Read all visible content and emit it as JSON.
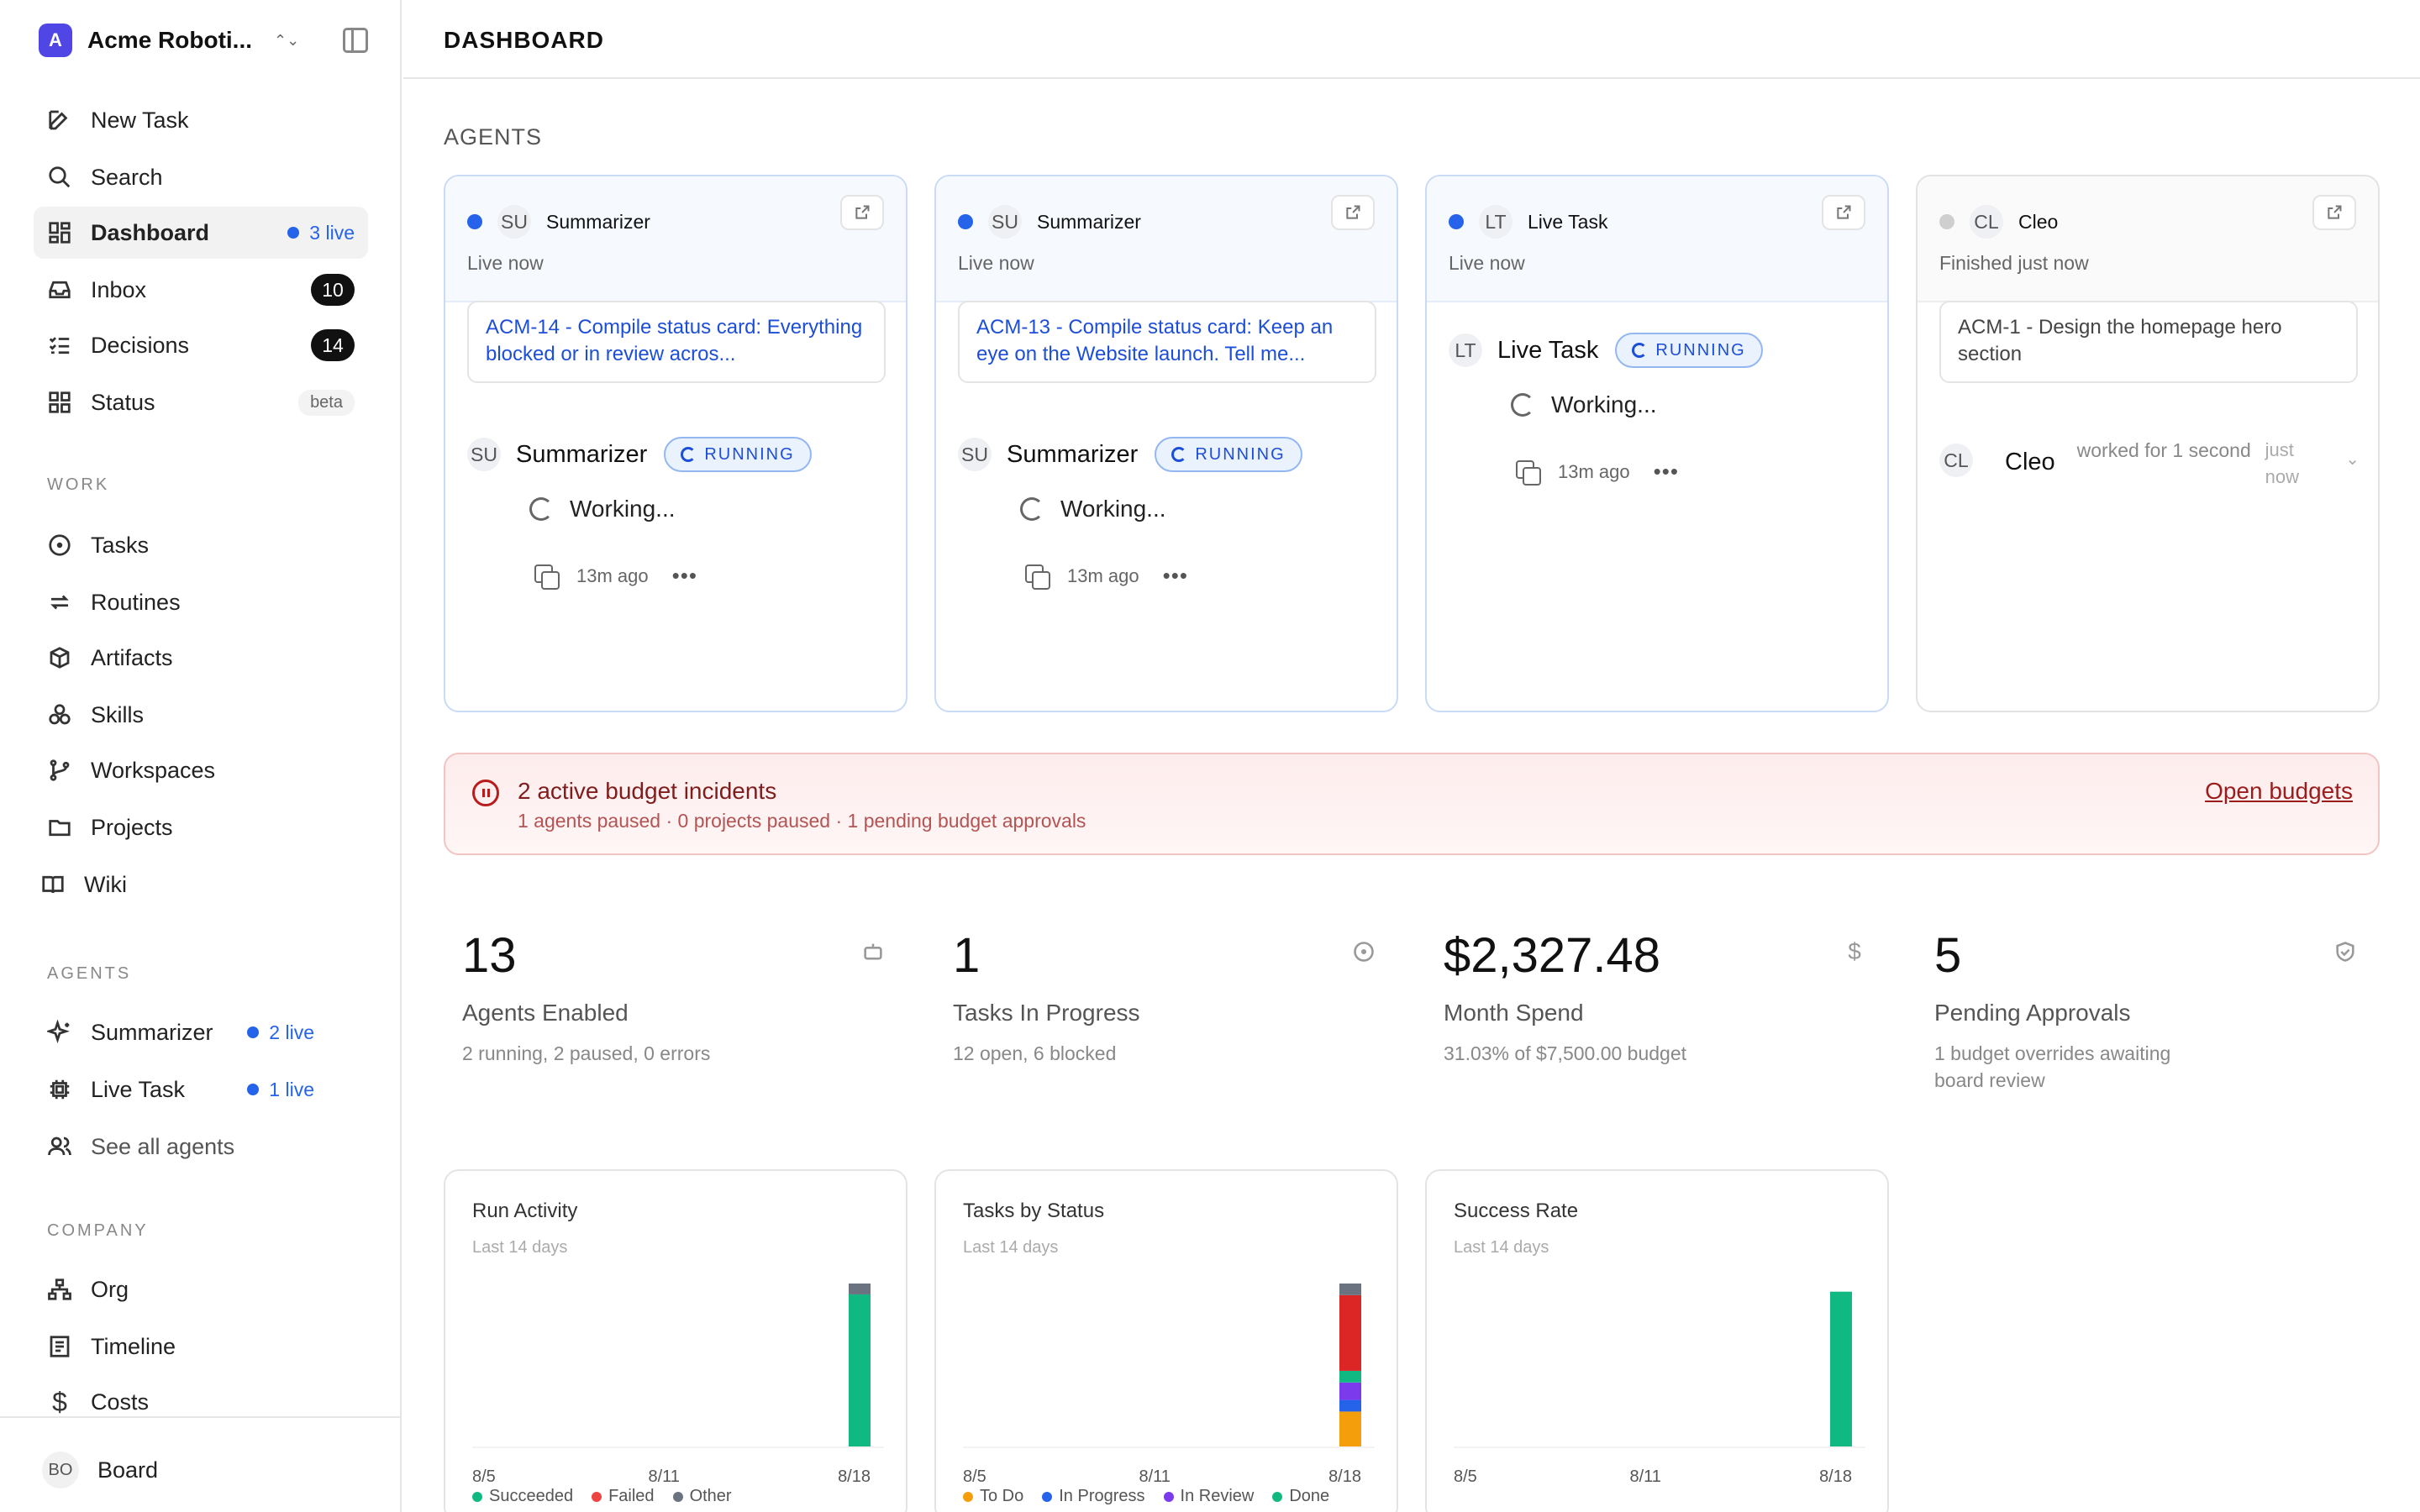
{
  "workspace": {
    "initial": "A",
    "name": "Acme Roboti...",
    "collapse_icon": "sidebar-collapse-icon"
  },
  "nav": {
    "new_task": "New Task",
    "search": "Search",
    "dashboard": "Dashboard",
    "dashboard_live": "3 live",
    "inbox": "Inbox",
    "inbox_count": "10",
    "decisions": "Decisions",
    "decisions_count": "14",
    "status": "Status",
    "status_badge": "beta"
  },
  "work_section": {
    "label": "WORK",
    "items": [
      "Tasks",
      "Routines",
      "Artifacts",
      "Skills",
      "Workspaces",
      "Projects",
      "Wiki"
    ]
  },
  "agents_section": {
    "label": "AGENTS",
    "summarizer": "Summarizer",
    "summarizer_live": "2 live",
    "live_task": "Live Task",
    "live_task_live": "1 live",
    "see_all": "See all agents"
  },
  "company_section": {
    "label": "COMPANY",
    "items": [
      "Org",
      "Timeline",
      "Costs"
    ]
  },
  "footer": {
    "initials": "BO",
    "name": "Board"
  },
  "header": {
    "title": "DASHBOARD"
  },
  "agents_heading": "AGENTS",
  "agent_cards": [
    {
      "initials": "SU",
      "name": "Summarizer",
      "sub": "Live now",
      "task": "ACM-14 - Compile status card: Everything blocked or in review acros...",
      "run_initials": "SU",
      "run_name": "Summarizer",
      "run_status": "RUNNING",
      "working": "Working...",
      "time": "13m ago"
    },
    {
      "initials": "SU",
      "name": "Summarizer",
      "sub": "Live now",
      "task": "ACM-13 - Compile status card: Keep an eye on the Website launch. Tell me...",
      "run_initials": "SU",
      "run_name": "Summarizer",
      "run_status": "RUNNING",
      "working": "Working...",
      "time": "13m ago"
    },
    {
      "initials": "LT",
      "name": "Live Task",
      "sub": "Live now",
      "run_initials": "LT",
      "run_name": "Live Task",
      "run_status": "RUNNING",
      "working": "Working...",
      "time": "13m ago"
    },
    {
      "initials": "CL",
      "name": "Cleo",
      "sub": "Finished just now",
      "task": "ACM-1 - Design the homepage hero section",
      "run_initials": "CL",
      "run_name": "Cleo",
      "run_text": "worked for 1 second",
      "run_time": "just now"
    }
  ],
  "incident": {
    "title": "2 active budget incidents",
    "sub": "1 agents paused · 0 projects paused · 1 pending budget approvals",
    "link": "Open budgets"
  },
  "stats": [
    {
      "value": "13",
      "label": "Agents Enabled",
      "sub": "2 running, 2 paused, 0 errors",
      "icon": "robot-icon"
    },
    {
      "value": "1",
      "label": "Tasks In Progress",
      "sub": "12 open, 6 blocked",
      "icon": "circle-dot-icon"
    },
    {
      "value": "$2,327.48",
      "label": "Month Spend",
      "sub": "31.03% of $7,500.00 budget",
      "icon": "dollar-icon"
    },
    {
      "value": "5",
      "label": "Pending Approvals",
      "sub": "1 budget overrides awaiting board review",
      "icon": "shield-check-icon"
    }
  ],
  "chart_data": [
    {
      "type": "bar",
      "title": "Run Activity",
      "subtitle": "Last 14 days",
      "x_ticks": [
        "8/5",
        "8/11",
        "8/18"
      ],
      "categories": [
        "8/5",
        "8/6",
        "8/7",
        "8/8",
        "8/9",
        "8/10",
        "8/11",
        "8/12",
        "8/13",
        "8/14",
        "8/15",
        "8/16",
        "8/17",
        "8/18"
      ],
      "series": [
        {
          "name": "Succeeded",
          "color": "#10b981",
          "values": [
            0,
            0,
            0,
            0,
            0,
            0,
            0,
            0,
            0,
            0,
            0,
            0,
            0,
            28
          ]
        },
        {
          "name": "Failed",
          "color": "#ef4444",
          "values": [
            0,
            0,
            0,
            0,
            0,
            0,
            0,
            0,
            0,
            0,
            0,
            0,
            0,
            0
          ]
        },
        {
          "name": "Other",
          "color": "#6b7280",
          "values": [
            0,
            0,
            0,
            0,
            0,
            0,
            0,
            0,
            0,
            0,
            0,
            0,
            0,
            2
          ]
        }
      ],
      "ylim": [
        0,
        30
      ]
    },
    {
      "type": "bar",
      "title": "Tasks by Status",
      "subtitle": "Last 14 days",
      "x_ticks": [
        "8/5",
        "8/11",
        "8/18"
      ],
      "categories": [
        "8/5",
        "8/6",
        "8/7",
        "8/8",
        "8/9",
        "8/10",
        "8/11",
        "8/12",
        "8/13",
        "8/14",
        "8/15",
        "8/16",
        "8/17",
        "8/18"
      ],
      "series": [
        {
          "name": "To Do",
          "color": "#f59e0b",
          "values": [
            0,
            0,
            0,
            0,
            0,
            0,
            0,
            0,
            0,
            0,
            0,
            0,
            0,
            6
          ]
        },
        {
          "name": "In Progress",
          "color": "#2563eb",
          "values": [
            0,
            0,
            0,
            0,
            0,
            0,
            0,
            0,
            0,
            0,
            0,
            0,
            0,
            2
          ]
        },
        {
          "name": "In Review",
          "color": "#7c3aed",
          "values": [
            0,
            0,
            0,
            0,
            0,
            0,
            0,
            0,
            0,
            0,
            0,
            0,
            0,
            3
          ]
        },
        {
          "name": "Done",
          "color": "#10b981",
          "values": [
            0,
            0,
            0,
            0,
            0,
            0,
            0,
            0,
            0,
            0,
            0,
            0,
            0,
            2
          ]
        },
        {
          "color": "#dc2626",
          "values": [
            0,
            0,
            0,
            0,
            0,
            0,
            0,
            0,
            0,
            0,
            0,
            0,
            0,
            13
          ]
        },
        {
          "color": "#6b7280",
          "values": [
            0,
            0,
            0,
            0,
            0,
            0,
            0,
            0,
            0,
            0,
            0,
            0,
            0,
            2
          ]
        }
      ],
      "ylim": [
        0,
        28
      ]
    },
    {
      "type": "bar",
      "title": "Success Rate",
      "subtitle": "Last 14 days",
      "x_ticks": [
        "8/5",
        "8/11",
        "8/18"
      ],
      "categories": [
        "8/5",
        "8/6",
        "8/7",
        "8/8",
        "8/9",
        "8/10",
        "8/11",
        "8/12",
        "8/13",
        "8/14",
        "8/15",
        "8/16",
        "8/17",
        "8/18"
      ],
      "series": [
        {
          "color": "#10b981",
          "values": [
            0,
            0,
            0,
            0,
            0,
            0,
            0,
            0,
            0,
            0,
            0,
            0,
            0,
            95
          ]
        }
      ],
      "ylim": [
        0,
        100
      ]
    }
  ]
}
